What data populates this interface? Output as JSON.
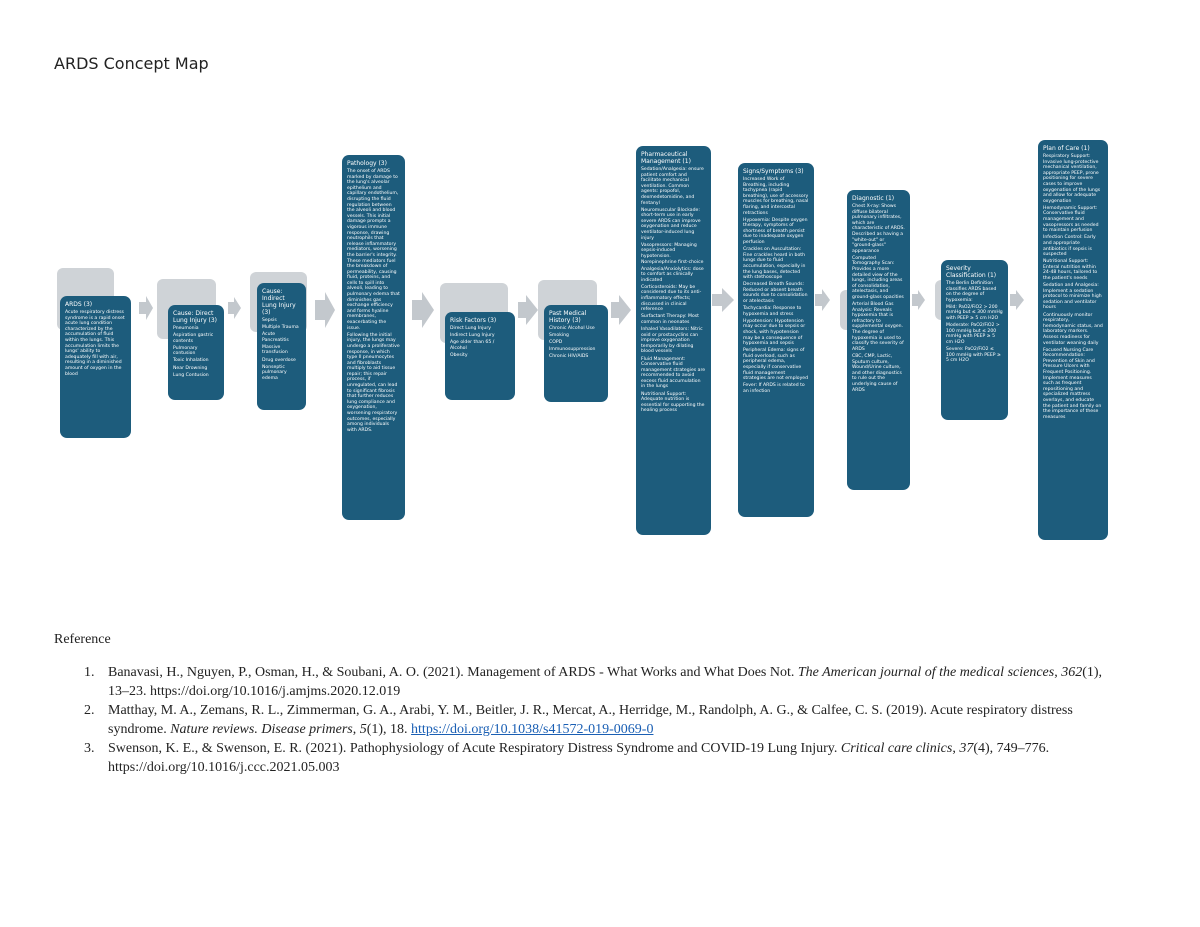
{
  "title": "ARDS Concept Map",
  "nodes": [
    {
      "heading": "ARDS (3)",
      "body": [
        "Acute respiratory distress syndrome is a rapid onset acute lung condition characterized by the accumulation of fluid within the lungs. This accumulation limits the lungs' ability to adequately fill with air, resulting in a diminished amount of oxygen in the blood"
      ]
    },
    {
      "heading": "Cause: Direct Lung Injury (3)",
      "body": [
        "Pneumonia",
        "Aspiration gastric contents",
        "Pulmonary contusion",
        "Toxic Inhalation",
        "Near Drowning",
        "Lung Contusion"
      ]
    },
    {
      "heading": "Cause: Indirect Lung Injury (3)",
      "body": [
        "Sepsis",
        "Multiple Trauma",
        "Acute Pancreatitis",
        "Massive transfusion",
        "Drug overdose",
        "Nonseptic pulmonary edema"
      ]
    },
    {
      "heading": "Pathology (3)",
      "body": [
        "The onset of ARDS marked by damage to the lung's alveolar epithelium and capillary endothelium, disrupting the fluid regulation between the alveoli and blood vessels. This initial damage prompts a vigorous immune response, drawing neutrophils that release inflammatory mediators, worsening the barrier's integrity. These mediators fuel the breakdown of permeability, causing fluid, proteins, and cells to spill into alveoli, leading to pulmonary edema that diminishes gas exchange efficiency and forms hyaline membranes, exacerbating the issue.",
        "Following the initial injury, the lungs may undergo a proliferative response, in which type II pneumocytes and fibroblasts multiply to aid tissue repair; this repair process, if unregulated, can lead to significant fibrosis that further reduces lung compliance and oxygenation, worsening respiratory outcomes, especially among individuals with ARDS."
      ]
    },
    {
      "heading": "Risk Factors (3)",
      "body": [
        "Direct Lung Injury",
        "Indirect Lung Injury",
        "Age older than 65 / Alcohol",
        "Obesity"
      ]
    },
    {
      "heading": "Past Medical History (3)",
      "body": [
        "Chronic Alcohol Use",
        "Smoking",
        "COPD",
        "Immunosuppression",
        "Chronic HIV/AIDS"
      ]
    },
    {
      "heading": "Pharmaceutical Management (1)",
      "body": [
        "Sedation/Analgesia: ensure patient comfort and facilitate mechanical ventilation. Common agents: propofol, dexmedetomidine, and fentanyl",
        "Neuromuscular Blockade: short-term use in early severe ARDS can improve oxygenation and reduce ventilator-induced lung injury",
        "Vasopressors: Managing sepsis-induced hypotension. Norepinephrine first-choice",
        "Analgesia/Anxiolytics: dose to comfort as clinically indicated",
        "Corticosteroids: May be considered due to its anti-inflammatory effects; discussed in clinical reference",
        "Surfactant Therapy: Most common in neonates",
        "Inhaled Vasodilators: Nitric oxid or prostacyclins can improve oxygenation temporarily by dilating blood vessels",
        "Fluid Management: Conservative fluid management strategies are recommended to avoid excess fluid accumulation in the lungs",
        "Nutritional Support: Adequate nutrition is essential for supporting the healing process"
      ]
    },
    {
      "heading": "Signs/Symptoms (3)",
      "body": [
        "Increased Work of Breathing, including tachypnea (rapid breathing), use of accessory muscles for breathing, nasal flaring, and intercostal retractions",
        "Hypoxemia: Despite oxygen therapy, symptoms of shortness of breath persist due to inadequate oxygen perfusion",
        "Crackles on Auscultation: Fine crackles heard in both lungs due to fluid accumulation, especially in the lung bases, detected with stethoscope",
        "Decreased Breath Sounds: Reduced or absent breath sounds due to consolidation or atelectasis",
        "Tachycardia: Response to hypoxemia and stress",
        "Hypotension: Hypotension may occur due to sepsis or shock, with hypotension may be a consequence of hypoxemia and sepsis",
        "Peripheral Edema: signs of fluid overload, such as peripheral edema, especially if conservative fluid management strategies are not employed",
        "Fever: If ARDS is related to an infection"
      ]
    },
    {
      "heading": "Diagnostic (1)",
      "body": [
        "Chest X-ray: Shows diffuse bilateral pulmonary infiltrates, which are characteristic of ARDS. Described as having a \"white-out\" or \"ground-glass\" appearance",
        "Computed Tomography Scan: Provides a more detailed view of the lungs, including areas of consolidation, atelectasis, and ground-glass opacities",
        "Arterial Blood Gas Analysis: Reveals hypoxemia that is refractory to supplemental oxygen. The degree of hypoxemia is used to classify the severity of ARDS",
        "CBC, CMP, Lactic, Sputum culture, Wound/Urine culture, and other diagnostics to rule out the underlying cause of ARDS"
      ]
    },
    {
      "heading": "Severity Classification (1)",
      "body": [
        "The Berlin Definition classifies ARDS based on the degree of hypoxemia:",
        "Mild: PaO2/FiO2 > 200 mmHg but ≤ 300 mmHg with PEEP ≥ 5 cm H2O",
        "Moderate: PaO2/FiO2 > 100 mmHg but ≤ 200 mmHg with PEEP ≥ 5 cm H2O",
        "Severe: PaO2/FiO2 ≤ 100 mmHg with PEEP ≥ 5 cm H2O"
      ]
    },
    {
      "heading": "Plan of Care (1)",
      "body": [
        "Respiratory Support: Invasive lung-protective mechanical ventilation, appropriate PEEP, prone positioning for severe cases to improve oxygenation of the lungs and allow for adequate oxygenation",
        "Hemodynamic Support: Conservative fluid management and vasopressors as needed to maintain perfusion",
        "Infection Control: Early and appropriate antibiotics if sepsis is suspected",
        "Nutritional Support: Enteral nutrition within 24-48 hours, tailored to the patient's needs",
        "Sedation and Analgesia: Implement a sedation protocol to minimize high sedation and ventilator hours",
        "Continuously monitor respiratory, hemodynamic status, and laboratory markers. Assess readiness for ventilator weaning daily",
        "Focused Nursing Care Recommendation: Prevention of Skin and Pressure Ulcers with Frequent Positioning. Implement measures such as frequent repositioning and specialized mattress overlays, and educate the patient and family on the importance of these measures"
      ]
    }
  ],
  "reference": {
    "heading": "Reference",
    "items": [
      {
        "number": "1.",
        "parts": [
          {
            "text": "Banavasi, H., Nguyen, P., Osman, H., & Soubani, A. O. (2021). Management of ARDS - What Works and What Does Not. "
          },
          {
            "text": "The American journal of the medical sciences",
            "italic": true
          },
          {
            "text": ", "
          },
          {
            "text": "362",
            "italic": true
          },
          {
            "text": "(1), 13–23. https://doi.org/10.1016/j.amjms.2020.12.019"
          }
        ]
      },
      {
        "number": "2.",
        "parts": [
          {
            "text": "Matthay, M. A., Zemans, R. L., Zimmerman, G. A., Arabi, Y. M., Beitler, J. R., Mercat, A., Herridge, M., Randolph, A. G., & Calfee, C. S. (2019). Acute respiratory distress syndrome. "
          },
          {
            "text": "Nature reviews. Disease primers",
            "italic": true
          },
          {
            "text": ", "
          },
          {
            "text": "5",
            "italic": true
          },
          {
            "text": "(1), 18. "
          },
          {
            "text": "https://doi.org/10.1038/s41572-019-0069-0",
            "link": true
          }
        ]
      },
      {
        "number": "3.",
        "parts": [
          {
            "text": "Swenson, K. E., & Swenson, E. R. (2021). Pathophysiology of Acute Respiratory Distress Syndrome and COVID-19 Lung Injury. "
          },
          {
            "text": "Critical care clinics",
            "italic": true
          },
          {
            "text": ", "
          },
          {
            "text": "37",
            "italic": true
          },
          {
            "text": "(4), 749–776. https://doi.org/10.1016/j.ccc.2021.05.003"
          }
        ]
      }
    ]
  }
}
